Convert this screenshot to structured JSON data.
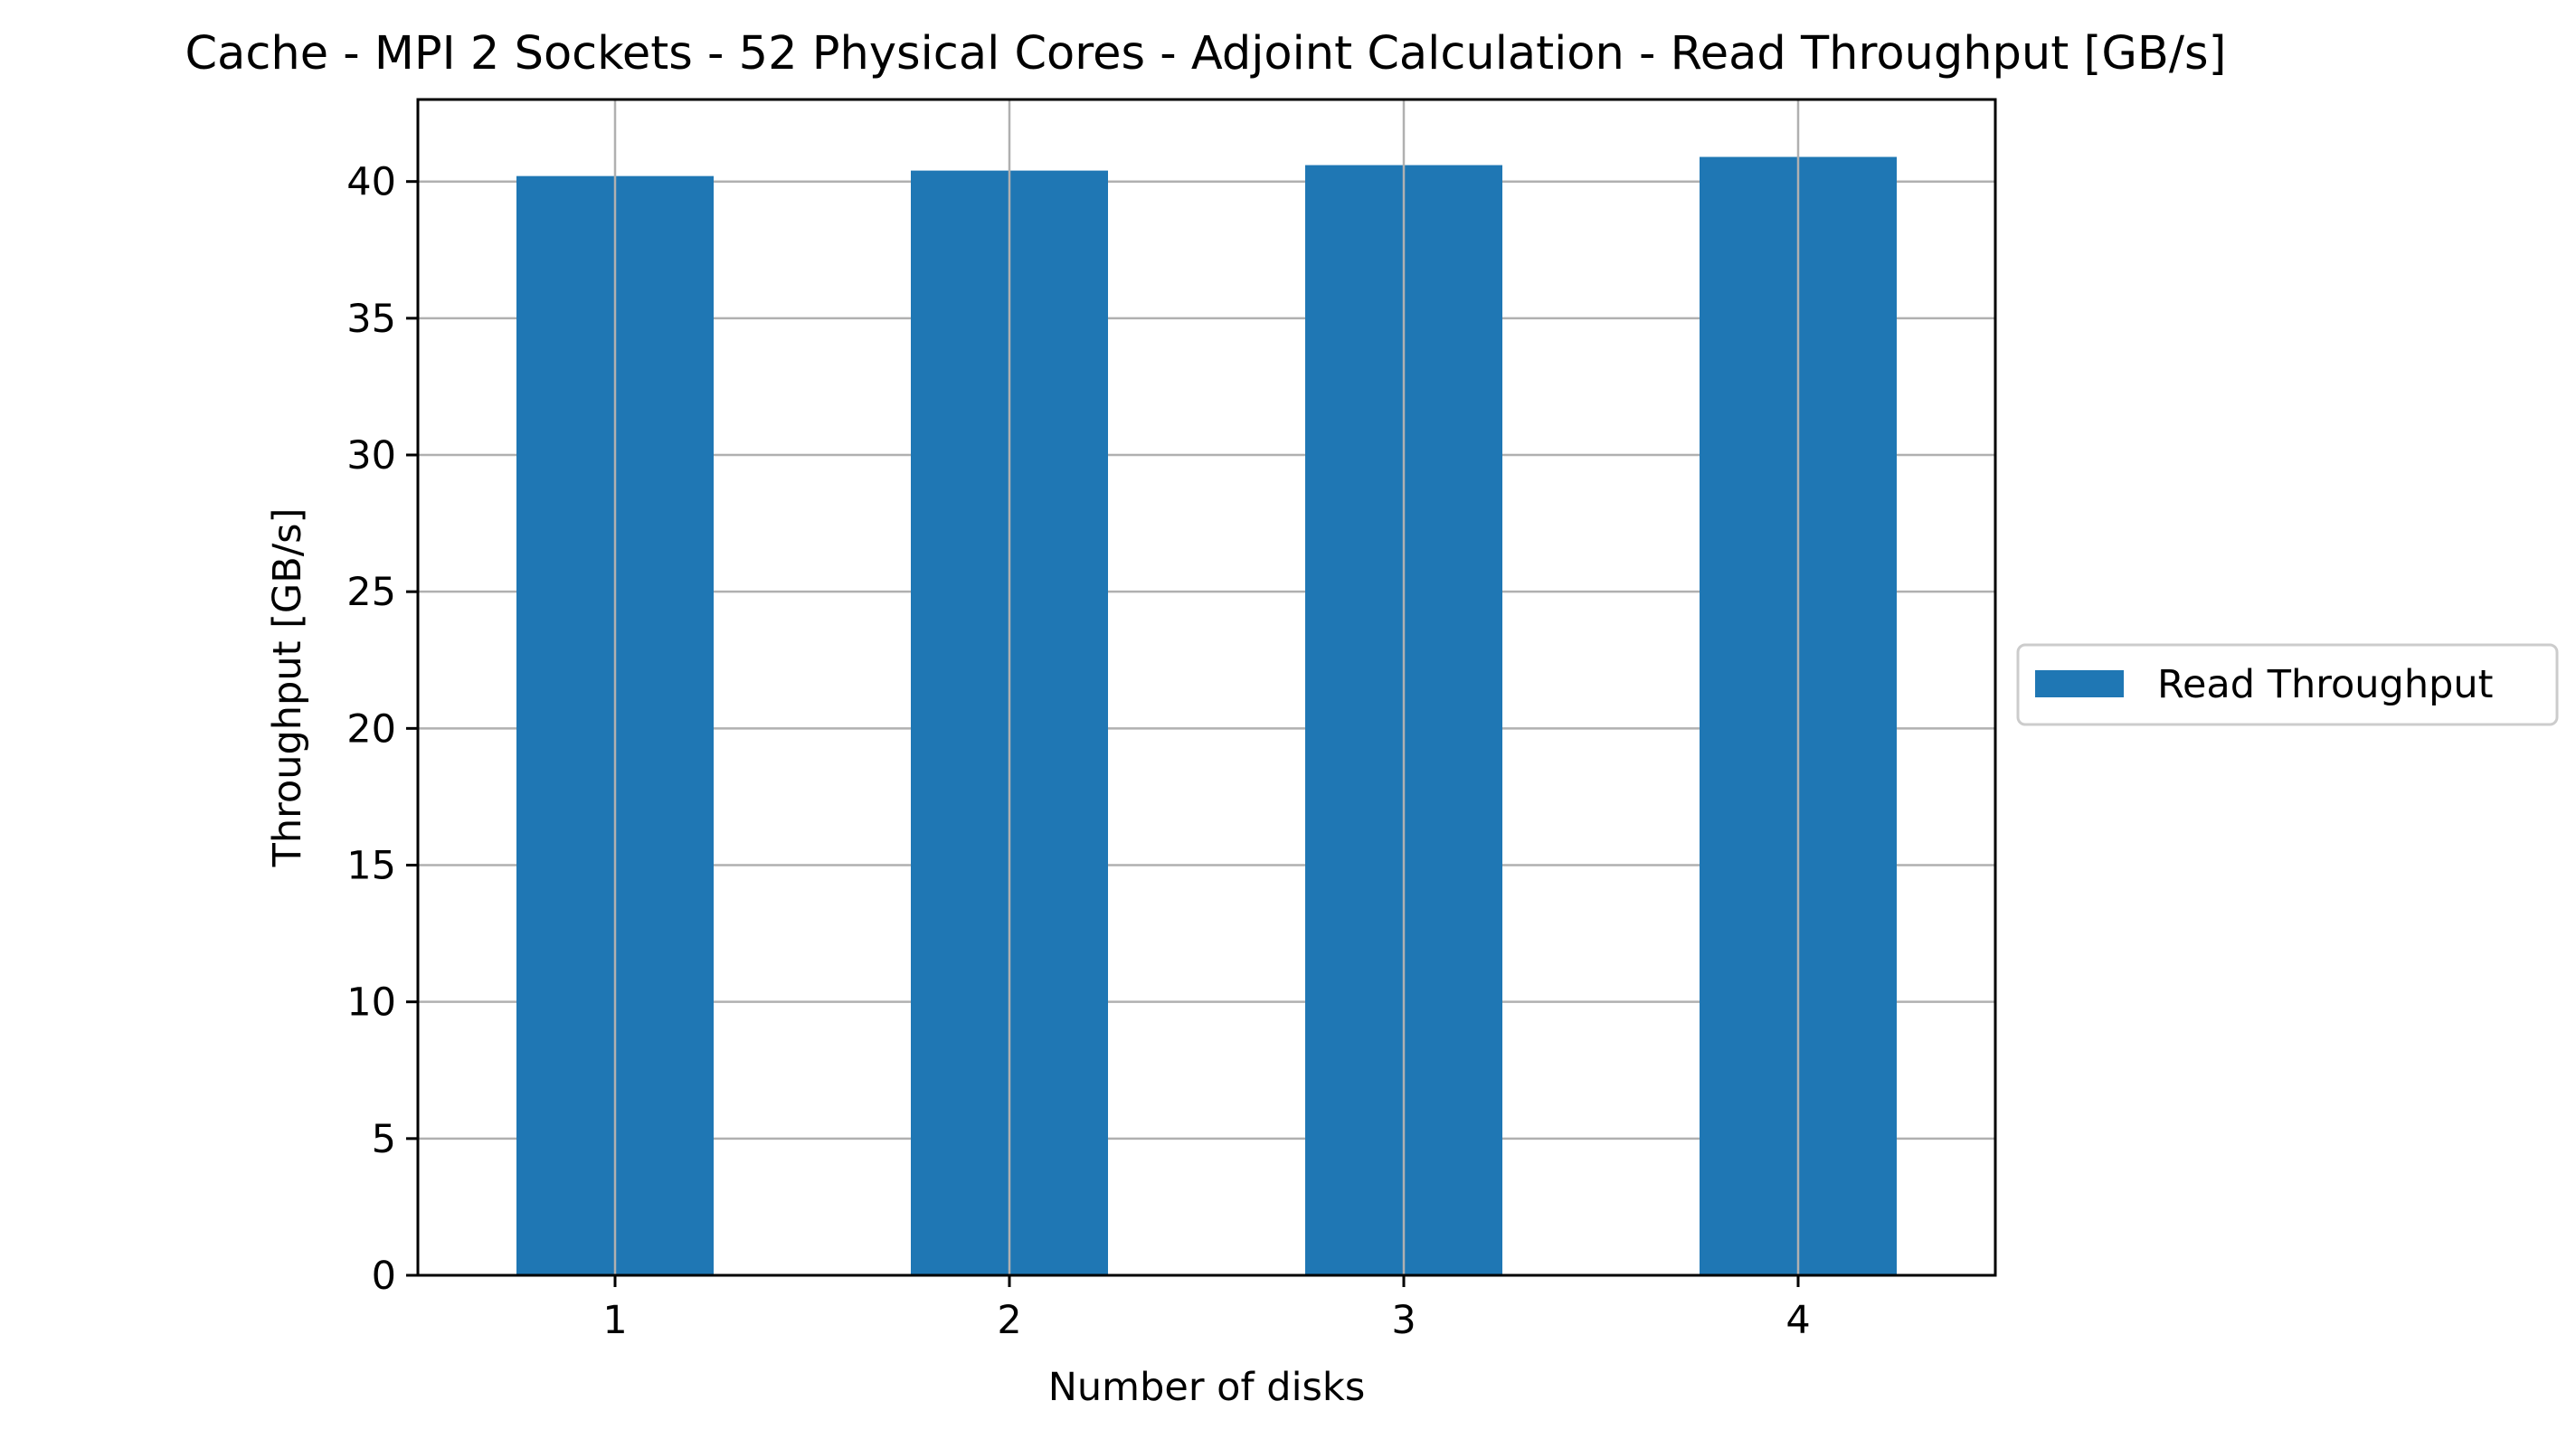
{
  "chart_data": {
    "type": "bar",
    "title": "Cache - MPI 2 Sockets - 52 Physical Cores - Adjoint Calculation - Read Throughput [GB/s]",
    "xlabel": "Number of disks",
    "ylabel": "Throughput [GB/s]",
    "categories": [
      "1",
      "2",
      "3",
      "4"
    ],
    "series": [
      {
        "name": "Read Throughput",
        "color": "#1f77b4",
        "values": [
          40.2,
          40.4,
          40.6,
          40.9
        ]
      }
    ],
    "ylim": [
      0,
      43
    ],
    "yticks": [
      0,
      5,
      10,
      15,
      20,
      25,
      30,
      35,
      40
    ],
    "grid": true,
    "legend_position": "outside-right"
  }
}
